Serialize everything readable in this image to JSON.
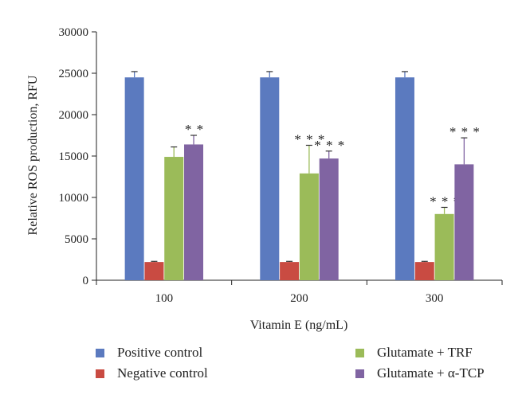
{
  "chart_data": {
    "type": "bar",
    "xlabel": "Vitamin E (ng/mL)",
    "ylabel": "Relative ROS production, RFU",
    "ylim": [
      0,
      30000
    ],
    "yticks": [
      "0",
      "5000",
      "10000",
      "15000",
      "20000",
      "25000",
      "30000"
    ],
    "categories": [
      "100",
      "200",
      "300"
    ],
    "series": [
      {
        "name": "Positive control",
        "color": "#5b7abf",
        "values": [
          24500,
          24500,
          24500
        ],
        "errors": [
          700,
          700,
          700
        ],
        "annotations": [
          "",
          "",
          ""
        ]
      },
      {
        "name": "Negative control",
        "color": "#c94b42",
        "values": [
          2200,
          2200,
          2200
        ],
        "errors": [
          80,
          80,
          80
        ],
        "annotations": [
          "",
          "",
          ""
        ]
      },
      {
        "name": "Glutamate + TRF",
        "color": "#9bbb59",
        "values": [
          14900,
          12900,
          8000
        ],
        "errors": [
          1200,
          3400,
          800
        ],
        "annotations": [
          "",
          "***",
          "***"
        ]
      },
      {
        "name": "Glutamate + α-TCP",
        "color": "#8064a2",
        "values": [
          16400,
          14700,
          14000
        ],
        "errors": [
          1100,
          900,
          3200
        ],
        "annotations": [
          "**",
          "***",
          "***"
        ]
      }
    ],
    "legend_position": "bottom"
  }
}
